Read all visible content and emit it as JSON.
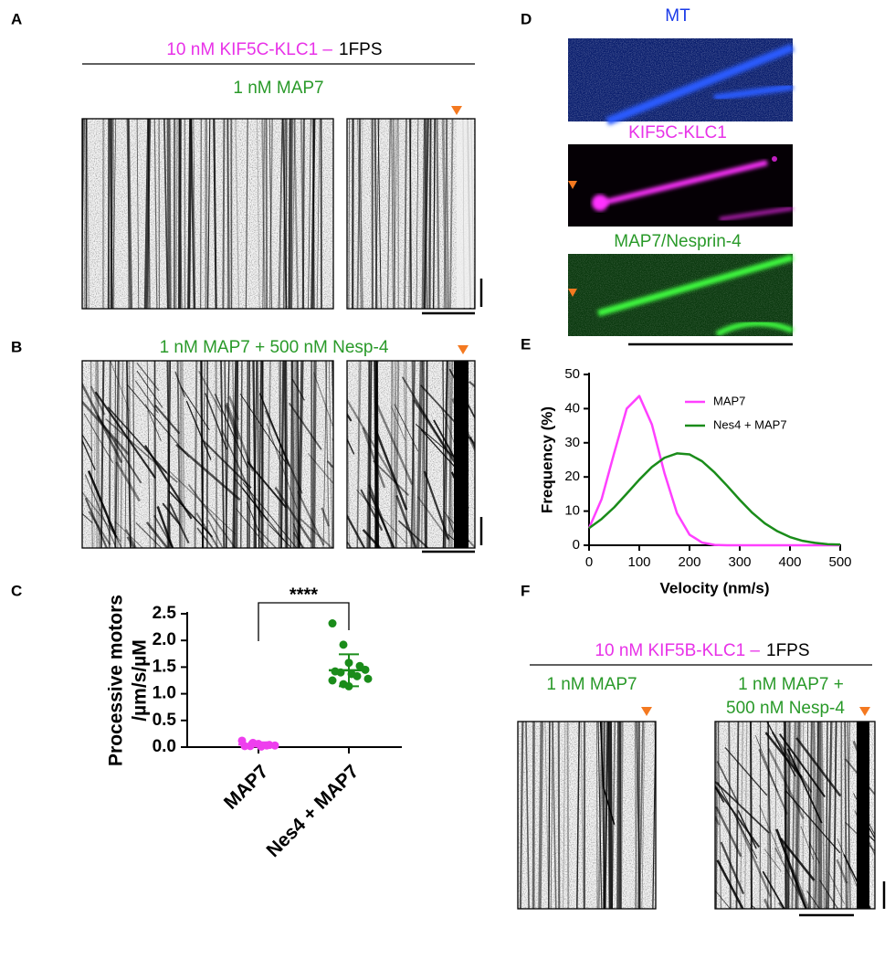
{
  "panel_labels": [
    "A",
    "B",
    "C",
    "D",
    "E",
    "F"
  ],
  "panel_a": {
    "header_magenta": "10 nM KIF5C-KLC1 –",
    "header_black": "1FPS",
    "condition": "1 nM MAP7"
  },
  "panel_b": {
    "condition": "1 nM MAP7 + 500 nM Nesp-4"
  },
  "panel_d": {
    "channels": [
      "MT",
      "KIF5C-KLC1",
      "MAP7/Nesprin-4"
    ]
  },
  "panel_f": {
    "header_magenta": "10 nM KIF5B-KLC1 –",
    "header_black": "1FPS",
    "conditions": [
      [
        "1 nM MAP7"
      ],
      [
        "1 nM MAP7 +",
        "500 nM Nesp-4"
      ]
    ]
  },
  "chart_data": [
    {
      "type": "scatter",
      "y_label": [
        "Processive motors",
        "/µm/s/µM"
      ],
      "significance": "****",
      "categories": [
        "MAP7",
        "Nes4 + MAP7"
      ],
      "series": [
        {
          "color": "#ee3fee",
          "values": [
            0.12,
            0.08,
            0.06,
            0.04,
            0.03,
            0.02,
            0.02,
            0.01,
            0.03
          ],
          "mean": 0.05,
          "sd": 0.04
        },
        {
          "color": "#1a8c1a",
          "values": [
            2.32,
            1.92,
            1.58,
            1.52,
            1.45,
            1.42,
            1.4,
            1.37,
            1.33,
            1.28,
            1.25,
            1.18,
            1.14
          ],
          "mean": 1.44,
          "sd": 0.3
        }
      ],
      "ylim": [
        0,
        2.5
      ],
      "yticks": [
        {
          "value": 0,
          "label": "0.0"
        },
        0.5,
        {
          "value": 1,
          "label": "1.0"
        },
        1.5,
        {
          "value": 2,
          "label": "2.0"
        },
        2.5
      ]
    },
    {
      "type": "line",
      "x_label": "Velocity (nm/s)",
      "y_label": "Frequency (%)",
      "x": [
        0,
        25,
        50,
        75,
        100,
        125,
        150,
        175,
        200,
        225,
        250,
        275,
        300,
        325,
        350,
        375,
        400,
        425,
        450,
        475,
        500
      ],
      "series": [
        {
          "name": "MAP7",
          "color": "#ff40ff",
          "values": [
            5.0,
            13.5,
            27.0,
            40.0,
            43.7,
            35.4,
            21.2,
            9.4,
            3.1,
            0.8,
            0.1,
            0,
            0,
            0,
            0,
            0,
            0,
            0,
            0,
            0,
            0
          ]
        },
        {
          "name": "Nes4 + MAP7",
          "color": "#1a8c1a",
          "values": [
            5.0,
            7.7,
            11.1,
            15.1,
            19.2,
            22.9,
            25.6,
            26.9,
            26.6,
            24.6,
            21.3,
            17.4,
            13.3,
            9.5,
            6.4,
            4.1,
            2.4,
            1.3,
            0.7,
            0.3,
            0.2
          ]
        }
      ],
      "xlim": [
        0,
        500
      ],
      "ylim": [
        0,
        50
      ],
      "xticks": [
        0,
        100,
        200,
        300,
        400,
        500
      ],
      "yticks": [
        0,
        10,
        20,
        30,
        40,
        50
      ]
    }
  ]
}
